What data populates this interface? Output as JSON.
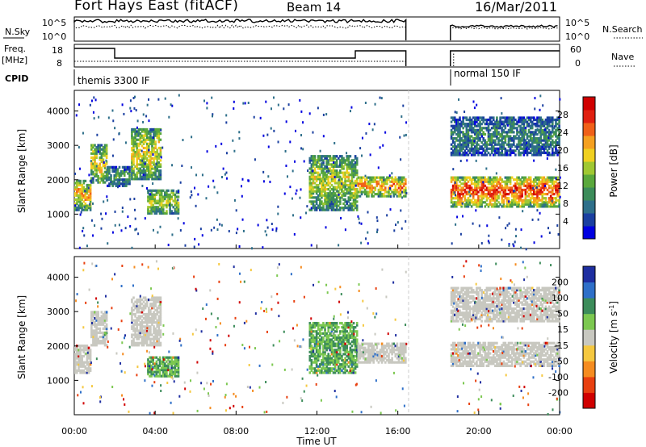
{
  "header": {
    "station": "Fort Hays East (fitACF)",
    "beam": "Beam 14",
    "date": "16/Mar/2011"
  },
  "top_panels": {
    "nsky_label": "N.Sky",
    "nsky_ticks": [
      "10^5",
      "10^0"
    ],
    "nsearch_label": "N.Search",
    "nsearch_ticks": [
      "10^5",
      "10^0"
    ],
    "freq_label": "Freq.",
    "freq_unit": "[MHz]",
    "freq_ticks": [
      "18",
      "8"
    ],
    "nave_label": "Nave",
    "nave_ticks": [
      "60",
      "0"
    ],
    "cpid_label": "CPID",
    "cpid_segments": [
      "themis 3300 IF",
      "normal 150 IF"
    ]
  },
  "colorbars": {
    "power": {
      "label": "Power [dB]",
      "ticks": [
        "28",
        "24",
        "20",
        "16",
        "12",
        "8",
        "4"
      ],
      "colors": [
        "#0000e0",
        "#1a3fa0",
        "#2e6f8a",
        "#3c8c5a",
        "#5aa83c",
        "#a0c832",
        "#f0d020",
        "#f5a020",
        "#f06018",
        "#e02010",
        "#d00000"
      ]
    },
    "velocity": {
      "label_main": "Velocity [m s",
      "label_sup": "-1",
      "label_end": "]",
      "ticks": [
        "200",
        "100",
        "50",
        "15",
        "-15",
        "-50",
        "-100",
        "-200"
      ],
      "colors": [
        "#1e2ea0",
        "#2e6fc8",
        "#3c8c5a",
        "#7cc850",
        "#c8c8c0",
        "#f5c840",
        "#f58c20",
        "#e84010",
        "#d00000"
      ]
    }
  },
  "axes": {
    "ylabel": "Slant Range [km]",
    "yticks": [
      "4000",
      "3000",
      "2000",
      "1000"
    ],
    "xticks": [
      "00:00",
      "04:00",
      "08:00",
      "12:00",
      "16:00",
      "20:00",
      "00:00"
    ],
    "xlabel": "Time UT"
  },
  "chart_data": [
    {
      "type": "heatmap",
      "name": "power",
      "xlabel": "Time UT",
      "ylabel": "Slant Range [km]",
      "xlim": [
        0,
        24
      ],
      "ylim": [
        0,
        4600
      ],
      "data_gap_hours": [
        16.4,
        18.6
      ],
      "bands": [
        {
          "t_start": 0.0,
          "t_end": 0.8,
          "r_low": 1100,
          "r_high": 2000,
          "db": 20
        },
        {
          "t_start": 0.8,
          "t_end": 1.6,
          "r_low": 1900,
          "r_high": 3000,
          "db": 18
        },
        {
          "t_start": 1.6,
          "t_end": 2.8,
          "r_low": 1800,
          "r_high": 2400,
          "db": 10
        },
        {
          "t_start": 2.8,
          "t_end": 4.3,
          "r_low": 2000,
          "r_high": 3500,
          "db": 18
        },
        {
          "t_start": 3.6,
          "t_end": 5.2,
          "r_low": 1000,
          "r_high": 1700,
          "db": 16
        },
        {
          "t_start": 11.6,
          "t_end": 14.0,
          "r_low": 1100,
          "r_high": 2700,
          "db": 16
        },
        {
          "t_start": 14.0,
          "t_end": 16.4,
          "r_low": 1500,
          "r_high": 2100,
          "db": 22
        },
        {
          "t_start": 18.6,
          "t_end": 24.0,
          "r_low": 1200,
          "r_high": 2100,
          "db": 26
        },
        {
          "t_start": 18.6,
          "t_end": 24.0,
          "r_low": 2700,
          "r_high": 3800,
          "db": 8
        }
      ]
    },
    {
      "type": "heatmap",
      "name": "velocity",
      "xlabel": "Time UT",
      "ylabel": "Slant Range [km]",
      "xlim": [
        0,
        24
      ],
      "ylim": [
        0,
        4600
      ],
      "data_gap_hours": [
        16.4,
        18.6
      ],
      "bands": [
        {
          "t_start": 0.0,
          "t_end": 0.8,
          "r_low": 1200,
          "r_high": 2000,
          "v": 0
        },
        {
          "t_start": 0.8,
          "t_end": 1.6,
          "r_low": 2000,
          "r_high": 3000,
          "v": 0
        },
        {
          "t_start": 2.8,
          "t_end": 4.3,
          "r_low": 2000,
          "r_high": 3400,
          "v": 0
        },
        {
          "t_start": 3.6,
          "t_end": 5.2,
          "r_low": 1100,
          "r_high": 1700,
          "v": 30
        },
        {
          "t_start": 11.6,
          "t_end": 14.0,
          "r_low": 1200,
          "r_high": 2700,
          "v": 40
        },
        {
          "t_start": 14.0,
          "t_end": 16.4,
          "r_low": 1500,
          "r_high": 2100,
          "v": 0
        },
        {
          "t_start": 18.6,
          "t_end": 24.0,
          "r_low": 1400,
          "r_high": 2100,
          "v": 0
        },
        {
          "t_start": 18.6,
          "t_end": 24.0,
          "r_low": 2700,
          "r_high": 3700,
          "v": 0
        }
      ]
    }
  ]
}
